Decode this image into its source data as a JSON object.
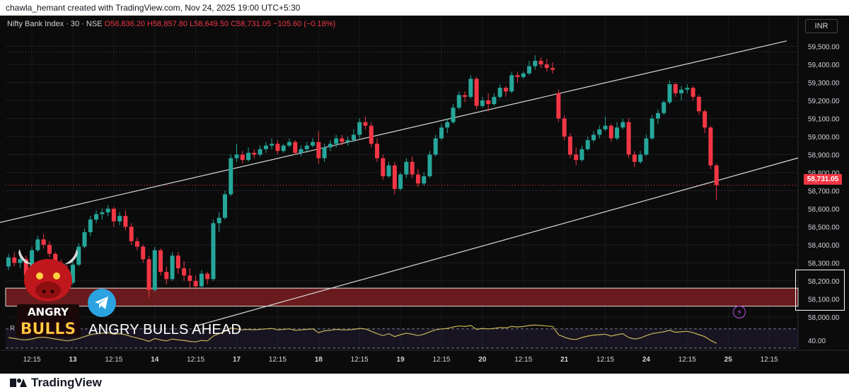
{
  "header": {
    "text": "chawla_hemant created with TradingView.com, Nov 24, 2025 19:00 UTC+5:30"
  },
  "legend": {
    "symbol": "Nifty Bank Index · 30 · NSE",
    "open": "O58,836.20",
    "high": "H58,857.80",
    "low": "L58,649.50",
    "close": "C58,731.05",
    "change": "−105.60 (−0.18%)"
  },
  "currency": "INR",
  "last_price": "58,731.05",
  "rsi_label": "RSI",
  "rsi_tick": "40.00",
  "promo_text": "ANGRY BULLS AHEAD",
  "logo": {
    "line1": "ANGRY",
    "line2": "BULLS"
  },
  "footer": {
    "brand": "TradingView"
  },
  "colors": {
    "up": "#26a69a",
    "down": "#f23645",
    "zone": "#7a1d20",
    "rsi": "#c9b458",
    "background": "#0b0b0b"
  },
  "icons": [
    "telegram-icon",
    "bull-logo-icon",
    "lightning-icon",
    "tradingview-logo-icon"
  ],
  "chart_data": {
    "type": "candlestick",
    "symbol": "Nifty Bank Index",
    "interval": "30",
    "exchange": "NSE",
    "ylim": [
      57950,
      59550
    ],
    "y_ticks": [
      58000,
      58100,
      58200,
      58300,
      58400,
      58500,
      58600,
      58700,
      58800,
      58900,
      59000,
      59100,
      59200,
      59300,
      59400,
      59500
    ],
    "y_tick_labels": [
      "58,000.00",
      "58,100.00",
      "58,200.00",
      "58,300.00",
      "58,400.00",
      "58,500.00",
      "58,600.00",
      "58,700.00",
      "58,800.00",
      "58,900.00",
      "59,000.00",
      "59,100.00",
      "59,200.00",
      "59,300.00",
      "59,400.00",
      "59,500.00"
    ],
    "x_ticks": [
      {
        "label": "12:15",
        "index": 4
      },
      {
        "label": "13",
        "index": 11
      },
      {
        "label": "12:15",
        "index": 18
      },
      {
        "label": "14",
        "index": 25
      },
      {
        "label": "12:15",
        "index": 32
      },
      {
        "label": "17",
        "index": 39
      },
      {
        "label": "12:15",
        "index": 46
      },
      {
        "label": "18",
        "index": 53
      },
      {
        "label": "12:15",
        "index": 60
      },
      {
        "label": "19",
        "index": 67
      },
      {
        "label": "12:15",
        "index": 74
      },
      {
        "label": "20",
        "index": 81
      },
      {
        "label": "12:15",
        "index": 88
      },
      {
        "label": "21",
        "index": 95
      },
      {
        "label": "12:15",
        "index": 102
      },
      {
        "label": "24",
        "index": 109
      },
      {
        "label": "12:15",
        "index": 116
      },
      {
        "label": "25",
        "index": 123
      },
      {
        "label": "12:15",
        "index": 130
      }
    ],
    "candles": [
      [
        58280,
        58350,
        58260,
        58330
      ],
      [
        58330,
        58360,
        58280,
        58300
      ],
      [
        58300,
        58340,
        58270,
        58320
      ],
      [
        58320,
        58340,
        58200,
        58230
      ],
      [
        58230,
        58390,
        58220,
        58370
      ],
      [
        58370,
        58450,
        58360,
        58430
      ],
      [
        58430,
        58460,
        58380,
        58400
      ],
      [
        58400,
        58420,
        58330,
        58350
      ],
      [
        58350,
        58360,
        58280,
        58300
      ],
      [
        58300,
        58320,
        58230,
        58260
      ],
      [
        58260,
        58290,
        58160,
        58190
      ],
      [
        58190,
        58310,
        58180,
        58290
      ],
      [
        58290,
        58410,
        58280,
        58390
      ],
      [
        58390,
        58490,
        58380,
        58470
      ],
      [
        58470,
        58560,
        58450,
        58540
      ],
      [
        58540,
        58590,
        58520,
        58570
      ],
      [
        58570,
        58600,
        58540,
        58580
      ],
      [
        58580,
        58620,
        58560,
        58600
      ],
      [
        58600,
        58610,
        58500,
        58530
      ],
      [
        58530,
        58580,
        58510,
        58560
      ],
      [
        58560,
        58590,
        58480,
        58500
      ],
      [
        58500,
        58520,
        58400,
        58420
      ],
      [
        58420,
        58440,
        58370,
        58390
      ],
      [
        58390,
        58400,
        58300,
        58320
      ],
      [
        58320,
        58340,
        58110,
        58150
      ],
      [
        58150,
        58390,
        58140,
        58370
      ],
      [
        58370,
        58380,
        58230,
        58250
      ],
      [
        58250,
        58280,
        58180,
        58210
      ],
      [
        58210,
        58360,
        58200,
        58340
      ],
      [
        58340,
        58360,
        58240,
        58270
      ],
      [
        58270,
        58310,
        58200,
        58230
      ],
      [
        58230,
        58270,
        58160,
        58200
      ],
      [
        58200,
        58230,
        58150,
        58170
      ],
      [
        58170,
        58260,
        58160,
        58240
      ],
      [
        58240,
        58250,
        58180,
        58210
      ],
      [
        58210,
        58540,
        58200,
        58520
      ],
      [
        58520,
        58580,
        58470,
        58550
      ],
      [
        58550,
        58700,
        58540,
        58680
      ],
      [
        58680,
        58900,
        58670,
        58880
      ],
      [
        58880,
        58960,
        58860,
        58900
      ],
      [
        58900,
        58920,
        58850,
        58870
      ],
      [
        58870,
        58940,
        58860,
        58910
      ],
      [
        58910,
        58930,
        58880,
        58900
      ],
      [
        58900,
        58950,
        58890,
        58930
      ],
      [
        58930,
        58970,
        58910,
        58950
      ],
      [
        58950,
        58990,
        58930,
        58960
      ],
      [
        58960,
        58980,
        58900,
        58920
      ],
      [
        58920,
        58960,
        58910,
        58950
      ],
      [
        58950,
        58990,
        58940,
        58970
      ],
      [
        58970,
        58980,
        58900,
        58910
      ],
      [
        58910,
        58950,
        58890,
        58930
      ],
      [
        58930,
        58970,
        58910,
        58950
      ],
      [
        58950,
        58990,
        58940,
        58970
      ],
      [
        58970,
        59030,
        58850,
        58880
      ],
      [
        58880,
        58960,
        58860,
        58940
      ],
      [
        58940,
        58980,
        58920,
        58960
      ],
      [
        58960,
        59010,
        58940,
        58990
      ],
      [
        58990,
        59010,
        58950,
        58970
      ],
      [
        58970,
        59000,
        58950,
        58980
      ],
      [
        58980,
        59040,
        58970,
        59010
      ],
      [
        59010,
        59100,
        58990,
        59080
      ],
      [
        59080,
        59110,
        59040,
        59060
      ],
      [
        59060,
        59080,
        58940,
        58960
      ],
      [
        58960,
        58990,
        58860,
        58880
      ],
      [
        58880,
        58900,
        58760,
        58780
      ],
      [
        58780,
        58860,
        58770,
        58840
      ],
      [
        58840,
        58860,
        58680,
        58710
      ],
      [
        58710,
        58800,
        58700,
        58790
      ],
      [
        58790,
        58880,
        58770,
        58860
      ],
      [
        58860,
        58890,
        58770,
        58790
      ],
      [
        58790,
        58820,
        58720,
        58740
      ],
      [
        58740,
        58800,
        58730,
        58780
      ],
      [
        58780,
        58920,
        58770,
        58900
      ],
      [
        58900,
        59010,
        58890,
        58990
      ],
      [
        58990,
        59070,
        58980,
        59050
      ],
      [
        59050,
        59100,
        59020,
        59080
      ],
      [
        59080,
        59180,
        59070,
        59160
      ],
      [
        59160,
        59250,
        59150,
        59230
      ],
      [
        59230,
        59250,
        59190,
        59220
      ],
      [
        59220,
        59340,
        59210,
        59320
      ],
      [
        59320,
        59330,
        59150,
        59170
      ],
      [
        59170,
        59220,
        59160,
        59200
      ],
      [
        59200,
        59240,
        59140,
        59180
      ],
      [
        59180,
        59240,
        59170,
        59220
      ],
      [
        59220,
        59290,
        59210,
        59270
      ],
      [
        59270,
        59280,
        59220,
        59250
      ],
      [
        59250,
        59360,
        59240,
        59340
      ],
      [
        59340,
        59360,
        59300,
        59330
      ],
      [
        59330,
        59360,
        59320,
        59350
      ],
      [
        59350,
        59420,
        59340,
        59390
      ],
      [
        59390,
        59450,
        59370,
        59420
      ],
      [
        59420,
        59440,
        59380,
        59400
      ],
      [
        59400,
        59430,
        59360,
        59380
      ],
      [
        59380,
        59410,
        59350,
        59370
      ],
      [
        59240,
        59260,
        59080,
        59100
      ],
      [
        59100,
        59120,
        58980,
        59000
      ],
      [
        59000,
        59020,
        58880,
        58900
      ],
      [
        58900,
        58940,
        58840,
        58870
      ],
      [
        58870,
        58950,
        58860,
        58930
      ],
      [
        58930,
        59000,
        58920,
        58980
      ],
      [
        58980,
        59030,
        58970,
        59010
      ],
      [
        59010,
        59060,
        58990,
        59040
      ],
      [
        59040,
        59110,
        59030,
        59060
      ],
      [
        59060,
        59070,
        58970,
        58990
      ],
      [
        58990,
        59080,
        58980,
        59050
      ],
      [
        59050,
        59100,
        59040,
        59080
      ],
      [
        59080,
        59100,
        58880,
        58900
      ],
      [
        58900,
        58920,
        58830,
        58860
      ],
      [
        58860,
        58920,
        58850,
        58900
      ],
      [
        58900,
        59010,
        58890,
        58990
      ],
      [
        58990,
        59120,
        58980,
        59100
      ],
      [
        59100,
        59150,
        59070,
        59130
      ],
      [
        59130,
        59200,
        59120,
        59190
      ],
      [
        59190,
        59310,
        59180,
        59290
      ],
      [
        59290,
        59300,
        59220,
        59240
      ],
      [
        59240,
        59280,
        59200,
        59260
      ],
      [
        59260,
        59290,
        59240,
        59270
      ],
      [
        59270,
        59280,
        59200,
        59220
      ],
      [
        59220,
        59230,
        59120,
        59140
      ],
      [
        59140,
        59150,
        59020,
        59050
      ],
      [
        59050,
        59060,
        58820,
        58840
      ],
      [
        58840,
        58850,
        58650,
        58730
      ]
    ],
    "channel_upper": {
      "from": {
        "index": -2,
        "price": 58520
      },
      "to": {
        "index": 133,
        "price": 59530
      }
    },
    "channel_lower": {
      "from": {
        "index": 32,
        "price": 57950
      },
      "to": {
        "index": 158,
        "price": 59090
      }
    },
    "support_zone": {
      "from": 58060,
      "to": 58160
    },
    "rsi": [
      52,
      50,
      48,
      47,
      49,
      52,
      53,
      51,
      49,
      47,
      45,
      47,
      50,
      54,
      58,
      60,
      61,
      62,
      59,
      60,
      58,
      54,
      51,
      48,
      44,
      50,
      47,
      45,
      49,
      47,
      46,
      44,
      43,
      46,
      45,
      55,
      60,
      65,
      72,
      70,
      68,
      69,
      68,
      69,
      70,
      71,
      68,
      69,
      70,
      67,
      68,
      69,
      70,
      62,
      66,
      67,
      69,
      68,
      68,
      69,
      71,
      70,
      65,
      60,
      56,
      60,
      54,
      58,
      61,
      59,
      56,
      59,
      64,
      68,
      70,
      71,
      74,
      76,
      75,
      77,
      69,
      71,
      70,
      71,
      73,
      72,
      75,
      74,
      75,
      77,
      78,
      77,
      76,
      75,
      58,
      53,
      49,
      48,
      52,
      55,
      57,
      58,
      59,
      55,
      58,
      60,
      52,
      49,
      51,
      56,
      60,
      62,
      64,
      67,
      63,
      64,
      65,
      62,
      58,
      54,
      46,
      40
    ],
    "rsi_ylim": [
      30,
      80
    ],
    "rsi_levels": [
      70,
      30
    ]
  }
}
